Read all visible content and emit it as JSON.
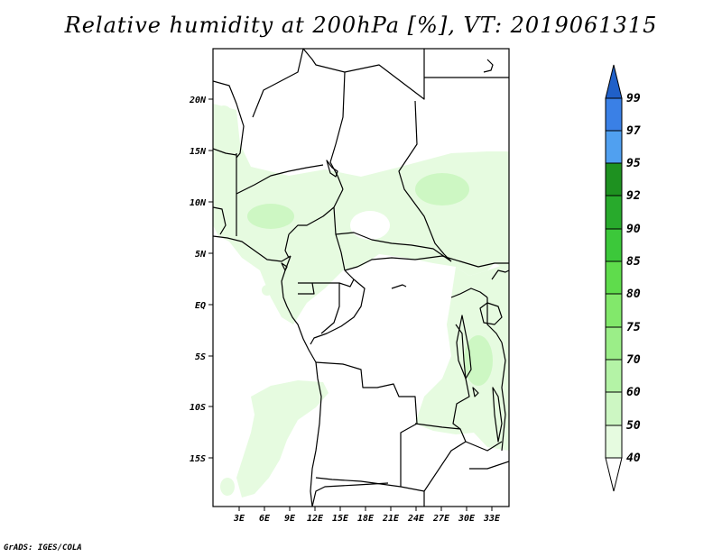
{
  "title": "Relative humidity at 200hPa [%], VT: 2019061315",
  "credit": "GrADS: IGES/COLA",
  "map": {
    "lon_range": [
      0,
      35
    ],
    "lat_range": [
      -20,
      25
    ],
    "lat_ticks": [
      {
        "value": 20,
        "label": "20N"
      },
      {
        "value": 15,
        "label": "15N"
      },
      {
        "value": 10,
        "label": "10N"
      },
      {
        "value": 5,
        "label": "5N"
      },
      {
        "value": 0,
        "label": "EQ"
      },
      {
        "value": -5,
        "label": "5S"
      },
      {
        "value": -10,
        "label": "10S"
      },
      {
        "value": -15,
        "label": "15S"
      }
    ],
    "lon_ticks": [
      {
        "value": 3,
        "label": "3E"
      },
      {
        "value": 6,
        "label": "6E"
      },
      {
        "value": 9,
        "label": "9E"
      },
      {
        "value": 12,
        "label": "12E"
      },
      {
        "value": 15,
        "label": "15E"
      },
      {
        "value": 18,
        "label": "18E"
      },
      {
        "value": 21,
        "label": "21E"
      },
      {
        "value": 24,
        "label": "24E"
      },
      {
        "value": 27,
        "label": "27E"
      },
      {
        "value": 30,
        "label": "30E"
      },
      {
        "value": 33,
        "label": "33E"
      }
    ]
  },
  "colorbar": {
    "levels": [
      "40",
      "50",
      "60",
      "70",
      "75",
      "80",
      "85",
      "90",
      "92",
      "95",
      "97",
      "99"
    ],
    "colors": {
      "lt40": "#ffffff",
      "b40_50": "#e6fbe0",
      "b50_60": "#cdf7c3",
      "b60_70": "#b4f3a6",
      "b70_75": "#9bee88",
      "b75_80": "#82e86b",
      "b80_85": "#5fdc4c",
      "b85_90": "#3cc83a",
      "b90_92": "#28aa2c",
      "b92_95": "#1e9120",
      "b95_97": "#50a0f0",
      "b97_99": "#3a80e6",
      "gt99": "#2060c8"
    }
  },
  "humidity_colors": {
    "light": "#e6fbe0",
    "medium": "#cdf7c3",
    "deep": "#b4f3a6"
  }
}
